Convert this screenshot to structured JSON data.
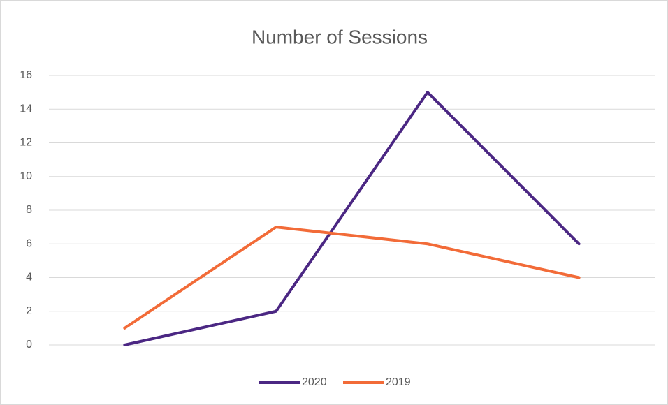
{
  "chart_data": {
    "type": "line",
    "title": "Number of Sessions",
    "categories": [
      null,
      null,
      null,
      null
    ],
    "series": [
      {
        "name": "2020",
        "color": "#4b2783",
        "values": [
          0,
          2,
          15,
          6
        ]
      },
      {
        "name": "2019",
        "color": "#f26b38",
        "values": [
          1,
          7,
          6,
          4
        ]
      }
    ],
    "ylim": [
      0,
      16
    ],
    "yticks": [
      0,
      2,
      4,
      6,
      8,
      10,
      12,
      14,
      16
    ],
    "grid": true,
    "legend": "bottom"
  }
}
